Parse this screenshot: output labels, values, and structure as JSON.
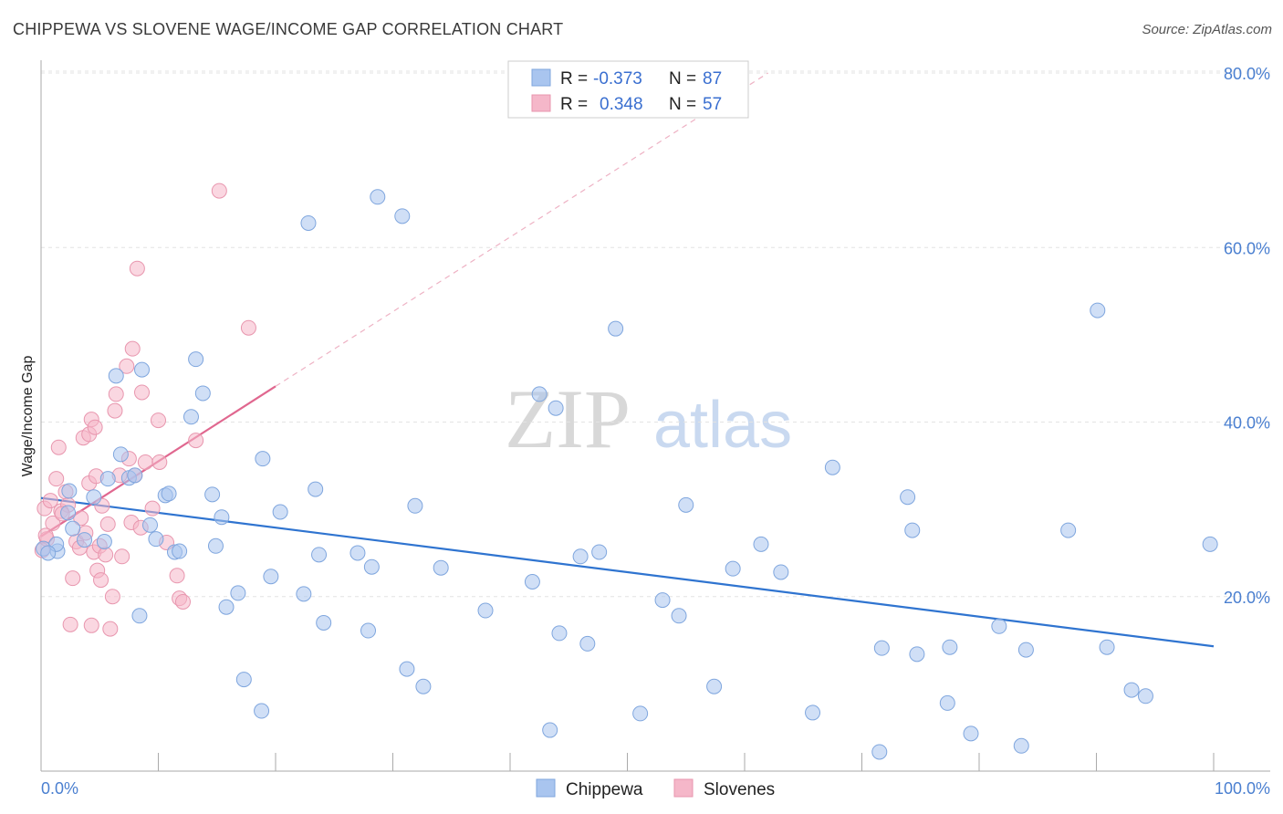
{
  "header": {
    "title": "CHIPPEWA VS SLOVENE WAGE/INCOME GAP CORRELATION CHART",
    "source": "Source: ZipAtlas.com"
  },
  "watermark": {
    "zip": "ZIP",
    "atlas": "atlas"
  },
  "legend": {
    "r_label": "R =",
    "n_label": "N =",
    "rows": [
      {
        "r": "-0.373",
        "n": "87"
      },
      {
        "r": "0.348",
        "n": "57"
      }
    ]
  },
  "bottom_legend": [
    "Chippewa",
    "Slovenes"
  ],
  "chart_data": {
    "type": "scatter",
    "title": "CHIPPEWA VS SLOVENE WAGE/INCOME GAP CORRELATION CHART",
    "xlabel": "",
    "ylabel": "Wage/Income Gap",
    "xlim": [
      0,
      100
    ],
    "ylim": [
      0,
      80
    ],
    "x_tick_labels": [
      "0.0%",
      "100.0%"
    ],
    "y_ticks": [
      20,
      40,
      60,
      80
    ],
    "y_tick_labels": [
      "20.0%",
      "40.0%",
      "60.0%",
      "80.0%"
    ],
    "grid": true,
    "legend_position": "top-center",
    "colors": {
      "Chippewa": "#a9c5ef",
      "Slovenes": "#f5b7c9",
      "chippewa_line": "#2f74d0",
      "slovenes_line": "#e0678f"
    },
    "series": [
      {
        "name": "Chippewa",
        "r": -0.373,
        "n": 87,
        "trend": {
          "x": [
            0,
            100
          ],
          "y": [
            31.3,
            14.3
          ]
        },
        "points": [
          [
            0.2,
            25.5
          ],
          [
            1.4,
            25.2
          ],
          [
            2.4,
            32.1
          ],
          [
            2.7,
            27.8
          ],
          [
            3.7,
            26.5
          ],
          [
            4.5,
            31.4
          ],
          [
            5.4,
            26.3
          ],
          [
            5.7,
            33.5
          ],
          [
            6.4,
            45.3
          ],
          [
            6.8,
            36.3
          ],
          [
            7.5,
            33.6
          ],
          [
            8.0,
            33.9
          ],
          [
            8.4,
            17.8
          ],
          [
            8.6,
            46.0
          ],
          [
            9.3,
            28.2
          ],
          [
            9.8,
            26.6
          ],
          [
            10.6,
            31.6
          ],
          [
            10.9,
            31.8
          ],
          [
            11.4,
            25.1
          ],
          [
            11.8,
            25.2
          ],
          [
            12.8,
            40.6
          ],
          [
            13.2,
            47.2
          ],
          [
            13.8,
            43.3
          ],
          [
            14.6,
            31.7
          ],
          [
            14.9,
            25.8
          ],
          [
            15.4,
            29.1
          ],
          [
            15.8,
            18.8
          ],
          [
            16.8,
            20.4
          ],
          [
            17.3,
            10.5
          ],
          [
            18.8,
            6.9
          ],
          [
            18.9,
            35.8
          ],
          [
            19.6,
            22.3
          ],
          [
            20.4,
            29.7
          ],
          [
            22.4,
            20.3
          ],
          [
            22.8,
            62.8
          ],
          [
            23.4,
            32.3
          ],
          [
            23.7,
            24.8
          ],
          [
            24.1,
            17.0
          ],
          [
            27.0,
            25.0
          ],
          [
            27.9,
            16.1
          ],
          [
            28.2,
            23.4
          ],
          [
            28.7,
            65.8
          ],
          [
            30.8,
            63.6
          ],
          [
            31.2,
            11.7
          ],
          [
            31.9,
            30.4
          ],
          [
            32.6,
            9.7
          ],
          [
            34.1,
            23.3
          ],
          [
            37.9,
            18.4
          ],
          [
            41.9,
            21.7
          ],
          [
            42.5,
            43.2
          ],
          [
            43.4,
            4.7
          ],
          [
            43.9,
            41.6
          ],
          [
            44.2,
            15.8
          ],
          [
            46.0,
            24.6
          ],
          [
            46.6,
            14.6
          ],
          [
            47.6,
            25.1
          ],
          [
            49.0,
            50.7
          ],
          [
            51.1,
            6.6
          ],
          [
            53.0,
            19.6
          ],
          [
            54.4,
            17.8
          ],
          [
            55.0,
            30.5
          ],
          [
            57.4,
            9.7
          ],
          [
            59.0,
            23.2
          ],
          [
            61.4,
            26.0
          ],
          [
            63.1,
            22.8
          ],
          [
            65.8,
            6.7
          ],
          [
            67.5,
            34.8
          ],
          [
            71.5,
            2.2
          ],
          [
            71.7,
            14.1
          ],
          [
            73.9,
            31.4
          ],
          [
            74.3,
            27.6
          ],
          [
            74.7,
            13.4
          ],
          [
            77.3,
            7.8
          ],
          [
            77.5,
            14.2
          ],
          [
            79.3,
            4.3
          ],
          [
            81.7,
            16.6
          ],
          [
            83.6,
            2.9
          ],
          [
            84.0,
            13.9
          ],
          [
            87.6,
            27.6
          ],
          [
            90.1,
            52.8
          ],
          [
            90.9,
            14.2
          ],
          [
            93.0,
            9.3
          ],
          [
            94.2,
            8.6
          ],
          [
            99.7,
            26.0
          ],
          [
            1.3,
            26.0
          ],
          [
            2.3,
            29.6
          ],
          [
            0.6,
            25.0
          ]
        ]
      },
      {
        "name": "Slovenes",
        "r": 0.348,
        "n": 57,
        "trend": {
          "x": [
            0,
            20
          ],
          "y": [
            26.9,
            44.1
          ]
        },
        "trend_dashed": {
          "x": [
            20,
            62
          ],
          "y": [
            44.1,
            80.0
          ]
        },
        "points": [
          [
            0.1,
            25.3
          ],
          [
            0.3,
            30.1
          ],
          [
            0.5,
            26.6
          ],
          [
            0.8,
            31.0
          ],
          [
            1.0,
            28.4
          ],
          [
            1.3,
            33.5
          ],
          [
            1.5,
            37.1
          ],
          [
            1.7,
            29.8
          ],
          [
            2.1,
            32.0
          ],
          [
            2.3,
            30.5
          ],
          [
            2.5,
            16.8
          ],
          [
            2.7,
            22.1
          ],
          [
            3.0,
            26.3
          ],
          [
            3.3,
            25.6
          ],
          [
            3.4,
            29.0
          ],
          [
            3.6,
            38.2
          ],
          [
            3.8,
            27.3
          ],
          [
            4.1,
            33.0
          ],
          [
            4.1,
            38.6
          ],
          [
            4.3,
            40.3
          ],
          [
            4.3,
            16.7
          ],
          [
            4.5,
            25.1
          ],
          [
            4.6,
            39.4
          ],
          [
            4.7,
            33.8
          ],
          [
            4.8,
            23.0
          ],
          [
            5.0,
            25.8
          ],
          [
            5.1,
            21.9
          ],
          [
            5.2,
            30.4
          ],
          [
            5.5,
            24.8
          ],
          [
            5.7,
            28.3
          ],
          [
            5.9,
            16.3
          ],
          [
            6.1,
            20.0
          ],
          [
            6.3,
            41.3
          ],
          [
            6.4,
            43.2
          ],
          [
            6.7,
            33.9
          ],
          [
            7.3,
            46.4
          ],
          [
            7.5,
            35.8
          ],
          [
            7.7,
            28.5
          ],
          [
            7.8,
            48.4
          ],
          [
            8.0,
            33.9
          ],
          [
            8.2,
            57.6
          ],
          [
            8.5,
            27.9
          ],
          [
            8.6,
            43.4
          ],
          [
            8.9,
            35.4
          ],
          [
            9.5,
            30.1
          ],
          [
            10.0,
            40.2
          ],
          [
            10.1,
            35.4
          ],
          [
            10.7,
            26.2
          ],
          [
            11.6,
            22.4
          ],
          [
            11.8,
            19.8
          ],
          [
            12.1,
            19.4
          ],
          [
            13.2,
            37.9
          ],
          [
            15.2,
            66.5
          ],
          [
            17.7,
            50.8
          ],
          [
            0.4,
            27.0
          ],
          [
            1.8,
            29.5
          ],
          [
            6.9,
            24.6
          ]
        ]
      }
    ]
  }
}
